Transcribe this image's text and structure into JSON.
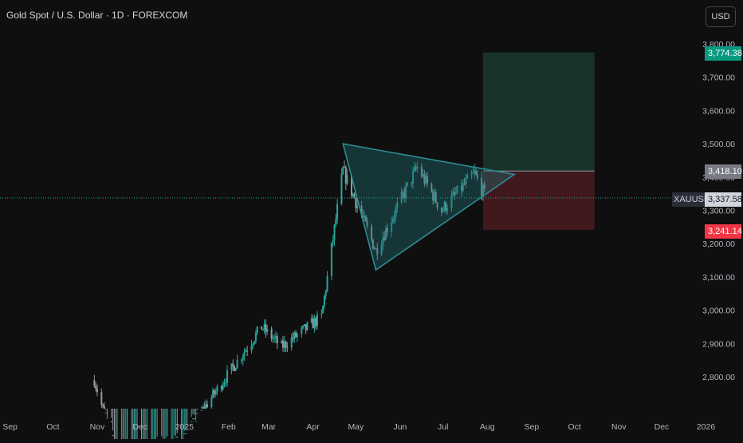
{
  "header": {
    "title": "Gold Spot / U.S. Dollar · 1D · FOREXCOM",
    "currency_button": "USD"
  },
  "symbol": "XAUUSD",
  "price_labels": {
    "target": "3,774.38",
    "entry": "3,418.10",
    "current": "3,337.58",
    "stop": "3,241.14"
  },
  "colors": {
    "background": "#0f0f0f",
    "up": "#26a69a",
    "down": "#9598a1",
    "target_zone": "#1b3a31",
    "stop_zone": "#4a1b20",
    "target_label": "#089981",
    "stop_label": "#f23645",
    "entry_label": "#787b86",
    "pattern_fill": "#1f6f73",
    "pattern_stroke": "#2e8c93"
  },
  "chart_data": {
    "type": "candlestick",
    "x_axis_labels": [
      "Sep",
      "Oct",
      "Nov",
      "Dec",
      "2025",
      "Feb",
      "Mar",
      "Apr",
      "May",
      "Jun",
      "Jul",
      "Aug",
      "Sep",
      "Oct",
      "Nov",
      "Dec",
      "2026"
    ],
    "y_axis_labels": [
      "3,800.00",
      "3,700.00",
      "3,600.00",
      "3,500.00",
      "3,400.00",
      "3,300.00",
      "3,200.00",
      "3,100.00",
      "3,000.00",
      "2,900.00",
      "2,800.00"
    ],
    "y_range": [
      2700,
      3800
    ],
    "current_price": 3337.58,
    "triangle_pattern": {
      "points": [
        {
          "date": "2025-04-22",
          "price": 3500
        },
        {
          "date": "2025-05-15",
          "price": 3121
        },
        {
          "date": "2025-08-20",
          "price": 3408
        }
      ]
    },
    "position": {
      "entry": 3418.1,
      "target": 3774.38,
      "stop": 3241.14,
      "start_date": "2025-07-29",
      "end_date": "2025-10-15"
    },
    "key_closes": [
      {
        "date": "2024-10-30",
        "price": 2790
      },
      {
        "date": "2024-11-14",
        "price": 2565
      },
      {
        "date": "2024-12-30",
        "price": 2610
      },
      {
        "date": "2025-02-24",
        "price": 2950
      },
      {
        "date": "2025-03-10",
        "price": 2890
      },
      {
        "date": "2025-04-07",
        "price": 2980
      },
      {
        "date": "2025-04-22",
        "price": 3420
      },
      {
        "date": "2025-05-15",
        "price": 3180
      },
      {
        "date": "2025-06-13",
        "price": 3430
      },
      {
        "date": "2025-06-30",
        "price": 3300
      },
      {
        "date": "2025-07-23",
        "price": 3410
      },
      {
        "date": "2025-07-31",
        "price": 3337
      }
    ]
  }
}
